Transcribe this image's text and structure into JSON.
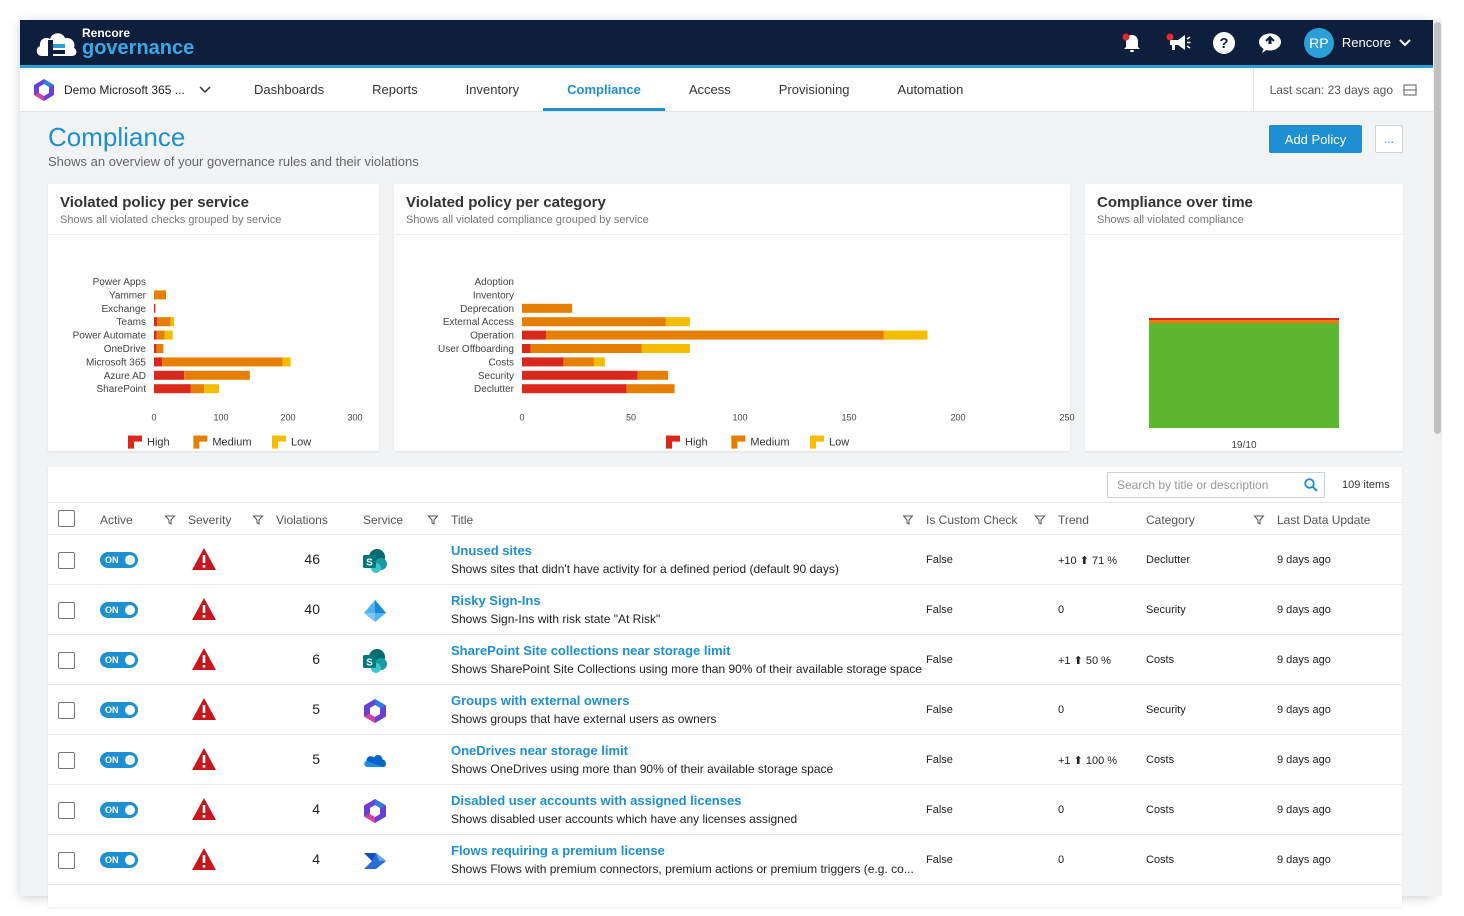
{
  "brand": {
    "line1": "Rencore",
    "line2": "governance"
  },
  "user": {
    "initials": "RP",
    "name": "Rencore"
  },
  "tenant": {
    "label": "Demo Microsoft 365 ..."
  },
  "nav": {
    "tabs": [
      {
        "label": "Dashboards",
        "active": false
      },
      {
        "label": "Reports",
        "active": false
      },
      {
        "label": "Inventory",
        "active": false
      },
      {
        "label": "Compliance",
        "active": true
      },
      {
        "label": "Access",
        "active": false
      },
      {
        "label": "Provisioning",
        "active": false
      },
      {
        "label": "Automation",
        "active": false
      }
    ],
    "last_scan": "Last scan: 23 days ago"
  },
  "page": {
    "title": "Compliance",
    "subtitle": "Shows an overview of your governance rules and their violations",
    "add_button": "Add Policy",
    "more_button": "..."
  },
  "colors": {
    "accent": "#1e8fd0",
    "high": "#d9291c",
    "medium": "#e67e00",
    "low": "#f5bd00",
    "ok": "#5bb830"
  },
  "chart_data": [
    {
      "type": "bar",
      "orientation": "horizontal",
      "stacked": true,
      "title": "Violated policy per service",
      "subtitle": "Shows all violated checks grouped by service",
      "categories": [
        "Power Apps",
        "Yammer",
        "Exchange",
        "Teams",
        "Power Automate",
        "OneDrive",
        "Microsoft 365",
        "Azure AD",
        "SharePoint"
      ],
      "series": [
        {
          "name": "High",
          "values": [
            0,
            0,
            2,
            5,
            4,
            4,
            12,
            45,
            55
          ]
        },
        {
          "name": "Medium",
          "values": [
            0,
            18,
            0,
            20,
            12,
            10,
            180,
            98,
            20
          ]
        },
        {
          "name": "Low",
          "values": [
            0,
            0,
            0,
            5,
            12,
            0,
            12,
            0,
            22
          ]
        }
      ],
      "xlim": [
        0,
        300
      ],
      "xticks": [
        "0",
        "100",
        "200",
        "300"
      ],
      "legend": "bottom"
    },
    {
      "type": "bar",
      "orientation": "horizontal",
      "stacked": true,
      "title": "Violated policy per category",
      "subtitle": "Shows all violated compliance grouped by service",
      "categories": [
        "Adoption",
        "Inventory",
        "Deprecation",
        "External Access",
        "Operation",
        "User Offboarding",
        "Costs",
        "Security",
        "Declutter"
      ],
      "series": [
        {
          "name": "High",
          "values": [
            0,
            0,
            0,
            0,
            11,
            4,
            19,
            53,
            48
          ]
        },
        {
          "name": "Medium",
          "values": [
            0,
            0,
            23,
            66,
            155,
            51,
            14,
            14,
            22
          ]
        },
        {
          "name": "Low",
          "values": [
            0,
            0,
            0,
            11,
            20,
            22,
            5,
            0,
            0
          ]
        }
      ],
      "xlim": [
        0,
        250
      ],
      "xticks": [
        "0",
        "50",
        "100",
        "150",
        "200",
        "250"
      ],
      "legend": "bottom"
    },
    {
      "type": "area",
      "title": "Compliance over time",
      "subtitle": "Shows all violated compliance",
      "x": [
        "19/10"
      ],
      "series": [
        {
          "color": "#5bb830",
          "value": 95
        },
        {
          "color": "#e67e00",
          "value": 3
        },
        {
          "color": "#d9291c",
          "value": 2
        }
      ]
    }
  ],
  "legend": {
    "high": "High",
    "medium": "Medium",
    "low": "Low"
  },
  "table": {
    "search_placeholder": "Search by title or description",
    "items_count": "109 items",
    "headers": {
      "active": "Active",
      "severity": "Severity",
      "violations": "Violations",
      "service": "Service",
      "title": "Title",
      "custom": "Is Custom Check",
      "trend": "Trend",
      "category": "Category",
      "updated": "Last Data Update"
    },
    "rows": [
      {
        "active": "ON",
        "violations": "46",
        "service": "sharepoint",
        "title": "Unused sites",
        "desc": "Shows sites that didn't have activity for a defined period (default 90 days)",
        "custom": "False",
        "trend": "+10 ⬆ 71 %",
        "category": "Declutter",
        "updated": "9 days ago"
      },
      {
        "active": "ON",
        "violations": "40",
        "service": "azure-ad",
        "title": "Risky Sign-Ins",
        "desc": "Shows Sign-Ins with risk state \"At Risk\"",
        "custom": "False",
        "trend": "0",
        "category": "Security",
        "updated": "9 days ago"
      },
      {
        "active": "ON",
        "violations": "6",
        "service": "sharepoint",
        "title": "SharePoint Site collections near storage limit",
        "desc": "Shows SharePoint Site Collections using more than 90% of their available storage space",
        "custom": "False",
        "trend": "+1 ⬆ 50 %",
        "category": "Costs",
        "updated": "9 days ago"
      },
      {
        "active": "ON",
        "violations": "5",
        "service": "microsoft-365",
        "title": "Groups with external owners",
        "desc": "Shows groups that have external users as owners",
        "custom": "False",
        "trend": "0",
        "category": "Security",
        "updated": "9 days ago"
      },
      {
        "active": "ON",
        "violations": "5",
        "service": "onedrive",
        "title": "OneDrives near storage limit",
        "desc": "Shows OneDrives using more than 90% of their available storage space",
        "custom": "False",
        "trend": "+1 ⬆ 100 %",
        "category": "Costs",
        "updated": "9 days ago"
      },
      {
        "active": "ON",
        "violations": "4",
        "service": "microsoft-365",
        "title": "Disabled user accounts with assigned licenses",
        "desc": "Shows disabled user accounts which have any licenses assigned",
        "custom": "False",
        "trend": "0",
        "category": "Costs",
        "updated": "9 days ago"
      },
      {
        "active": "ON",
        "violations": "4",
        "service": "power-automate",
        "title": "Flows requiring a premium license",
        "desc": "Shows Flows with premium connectors, premium actions or premium triggers (e.g. co...",
        "custom": "False",
        "trend": "0",
        "category": "Costs",
        "updated": "9 days ago"
      }
    ]
  }
}
